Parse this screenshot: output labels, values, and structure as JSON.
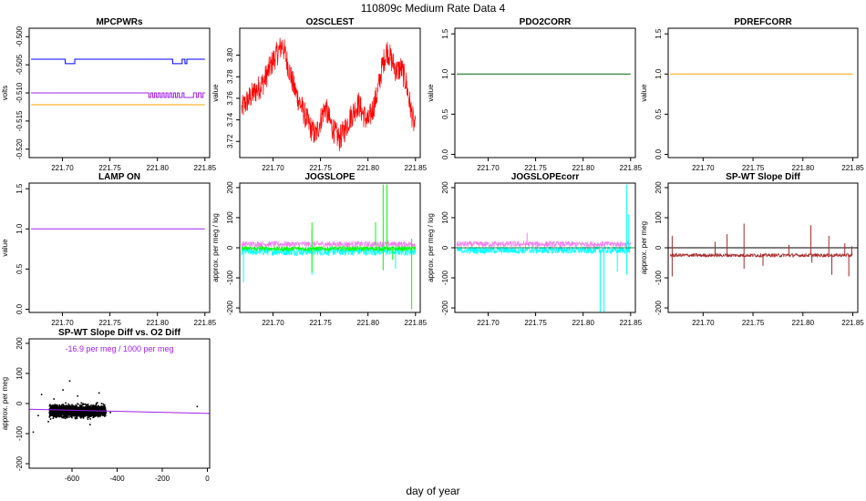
{
  "figure": {
    "title": "110809c   Medium Rate Data 4",
    "xlabel": "day of year"
  },
  "chart_data": [
    {
      "id": "mpcpwrs",
      "type": "line",
      "title": "MPCPWRs",
      "ylabel": "volts",
      "xlim": [
        221.665,
        221.855
      ],
      "ylim": [
        -0.5215,
        -0.4985
      ],
      "xticks": [
        {
          "v": 221.7,
          "label": "221.70"
        },
        {
          "v": 221.75,
          "label": "221.75"
        },
        {
          "v": 221.8,
          "label": "221.80"
        },
        {
          "v": 221.85,
          "label": "221.85"
        }
      ],
      "yticks": [
        {
          "v": -0.52,
          "label": "-0.520"
        },
        {
          "v": -0.515,
          "label": "-0.515"
        },
        {
          "v": -0.51,
          "label": "-0.510"
        },
        {
          "v": -0.505,
          "label": "-0.505"
        },
        {
          "v": -0.5,
          "label": "-0.500"
        }
      ],
      "series": [
        {
          "color": "#0000ff",
          "step": true,
          "x": [
            221.667,
            221.7,
            221.703,
            221.711,
            221.713,
            221.814,
            221.816,
            221.822,
            221.826,
            221.829,
            221.831,
            221.836,
            221.85
          ],
          "y": [
            -0.504,
            -0.504,
            -0.5048,
            -0.5048,
            -0.504,
            -0.504,
            -0.5048,
            -0.5048,
            -0.504,
            -0.5048,
            -0.504,
            -0.504,
            -0.504
          ]
        },
        {
          "color": "#a020f0",
          "step": true,
          "x": [
            221.667,
            221.79,
            221.791,
            221.793,
            221.795,
            221.797,
            221.799,
            221.801,
            221.803,
            221.805,
            221.807,
            221.809,
            221.811,
            221.813,
            221.815,
            221.817,
            221.819,
            221.821,
            221.823,
            221.826,
            221.828,
            221.836,
            221.838,
            221.841,
            221.843,
            221.846,
            221.848,
            221.85
          ],
          "y": [
            -0.51,
            -0.51,
            -0.5108,
            -0.51,
            -0.5108,
            -0.51,
            -0.5108,
            -0.51,
            -0.5108,
            -0.51,
            -0.5108,
            -0.51,
            -0.5108,
            -0.51,
            -0.5108,
            -0.51,
            -0.5108,
            -0.51,
            -0.5108,
            -0.51,
            -0.5108,
            -0.5108,
            -0.51,
            -0.5108,
            -0.51,
            -0.5108,
            -0.51,
            -0.51
          ]
        },
        {
          "color": "#ffa500",
          "x": [
            221.667,
            221.85
          ],
          "y": [
            -0.5121,
            -0.5121
          ]
        }
      ]
    },
    {
      "id": "o2sclest",
      "type": "line",
      "title": "O2SCLEST",
      "ylabel": "value",
      "xlim": [
        221.665,
        221.855
      ],
      "ylim": [
        3.705,
        3.825
      ],
      "xticks": [
        {
          "v": 221.7,
          "label": "221.70"
        },
        {
          "v": 221.75,
          "label": "221.75"
        },
        {
          "v": 221.8,
          "label": "221.80"
        },
        {
          "v": 221.85,
          "label": "221.85"
        }
      ],
      "yticks": [
        {
          "v": 3.72,
          "label": "3.72"
        },
        {
          "v": 3.74,
          "label": "3.74"
        },
        {
          "v": 3.76,
          "label": "3.76"
        },
        {
          "v": 3.78,
          "label": "3.78"
        },
        {
          "v": 3.8,
          "label": "3.80"
        }
      ],
      "series": [
        {
          "color": "#ff0000",
          "noise": 0.012,
          "x": [
            221.667,
            221.675,
            221.69,
            221.7,
            221.71,
            221.716,
            221.722,
            221.73,
            221.738,
            221.745,
            221.75,
            221.755,
            221.76,
            221.765,
            221.77,
            221.775,
            221.78,
            221.785,
            221.79,
            221.795,
            221.8,
            221.805,
            221.81,
            221.815,
            221.82,
            221.825,
            221.83,
            221.835,
            221.84,
            221.845,
            221.85
          ],
          "y": [
            3.75,
            3.76,
            3.775,
            3.795,
            3.81,
            3.79,
            3.77,
            3.752,
            3.735,
            3.725,
            3.74,
            3.752,
            3.738,
            3.728,
            3.722,
            3.73,
            3.74,
            3.748,
            3.755,
            3.745,
            3.738,
            3.75,
            3.765,
            3.79,
            3.805,
            3.795,
            3.785,
            3.788,
            3.775,
            3.75,
            3.73
          ]
        }
      ]
    },
    {
      "id": "pdo2corr",
      "type": "line",
      "title": "PDO2CORR",
      "ylabel": "value",
      "xlim": [
        221.665,
        221.855
      ],
      "ylim": [
        -0.04,
        1.57
      ],
      "xticks": [
        {
          "v": 221.7,
          "label": "221.70"
        },
        {
          "v": 221.75,
          "label": "221.75"
        },
        {
          "v": 221.8,
          "label": "221.80"
        },
        {
          "v": 221.85,
          "label": "221.85"
        }
      ],
      "yticks": [
        {
          "v": 0.0,
          "label": "0.0"
        },
        {
          "v": 0.5,
          "label": "0.5"
        },
        {
          "v": 1.0,
          "label": "1.0"
        },
        {
          "v": 1.5,
          "label": "1.5"
        }
      ],
      "series": [
        {
          "color": "#006400",
          "x": [
            221.667,
            221.85
          ],
          "y": [
            1.0,
            1.0
          ]
        }
      ]
    },
    {
      "id": "pdrefcorr",
      "type": "line",
      "title": "PDREFCORR",
      "ylabel": "value",
      "xlim": [
        221.665,
        221.855
      ],
      "ylim": [
        -0.04,
        1.57
      ],
      "xticks": [
        {
          "v": 221.7,
          "label": "221.70"
        },
        {
          "v": 221.75,
          "label": "221.75"
        },
        {
          "v": 221.8,
          "label": "221.80"
        },
        {
          "v": 221.85,
          "label": "221.85"
        }
      ],
      "yticks": [
        {
          "v": 0.0,
          "label": "0.0"
        },
        {
          "v": 0.5,
          "label": "0.5"
        },
        {
          "v": 1.0,
          "label": "1.0"
        },
        {
          "v": 1.5,
          "label": "1.5"
        }
      ],
      "series": [
        {
          "color": "#ffa500",
          "x": [
            221.667,
            221.85
          ],
          "y": [
            1.0,
            1.0
          ]
        }
      ]
    },
    {
      "id": "lampon",
      "type": "line",
      "title": "LAMP ON",
      "ylabel": "value",
      "xlim": [
        221.665,
        221.855
      ],
      "ylim": [
        -0.04,
        1.57
      ],
      "xticks": [
        {
          "v": 221.7,
          "label": "221.70"
        },
        {
          "v": 221.75,
          "label": "221.75"
        },
        {
          "v": 221.8,
          "label": "221.80"
        },
        {
          "v": 221.85,
          "label": "221.85"
        }
      ],
      "yticks": [
        {
          "v": 0.0,
          "label": "0.0"
        },
        {
          "v": 0.5,
          "label": "0.5"
        },
        {
          "v": 1.0,
          "label": "1.0"
        },
        {
          "v": 1.5,
          "label": "1.5"
        }
      ],
      "series": [
        {
          "color": "#a020f0",
          "x": [
            221.667,
            221.85
          ],
          "y": [
            1.0,
            1.0
          ]
        }
      ]
    },
    {
      "id": "jogslope",
      "type": "line",
      "title": "JOGSLOPE",
      "ylabel": "approx. per meg / log",
      "xlim": [
        221.665,
        221.855
      ],
      "ylim": [
        -215,
        215
      ],
      "xticks": [
        {
          "v": 221.7,
          "label": "221.70"
        },
        {
          "v": 221.75,
          "label": "221.75"
        },
        {
          "v": 221.8,
          "label": "221.80"
        },
        {
          "v": 221.85,
          "label": "221.85"
        }
      ],
      "yticks": [
        {
          "v": -200,
          "label": "-200"
        },
        {
          "v": -100,
          "label": "-100"
        },
        {
          "v": 0,
          "label": "0"
        },
        {
          "v": 100,
          "label": "100"
        },
        {
          "v": 200,
          "label": "200"
        }
      ],
      "series": [
        {
          "color": "#00ffff",
          "base": -12,
          "noise": 14,
          "x": [
            221.667,
            221.85
          ],
          "y": [
            -12,
            -12
          ],
          "spikes": [
            {
              "x": 221.669,
              "y": -115
            },
            {
              "x": 221.741,
              "y": -90
            },
            {
              "x": 221.829,
              "y": -70
            }
          ]
        },
        {
          "color": "#ee82ee",
          "base": 12,
          "noise": 10,
          "x": [
            221.667,
            221.85
          ],
          "y": [
            12,
            12
          ],
          "spikes": [
            {
              "x": 221.741,
              "y": 60
            }
          ]
        },
        {
          "color": "#00ff00",
          "base": -3,
          "noise": 8,
          "x": [
            221.667,
            221.85
          ],
          "y": [
            -3,
            -3
          ],
          "spikes": [
            {
              "x": 221.741,
              "y": 85
            },
            {
              "x": 221.741,
              "y": -80
            },
            {
              "x": 221.808,
              "y": 85
            },
            {
              "x": 221.816,
              "y": 210
            },
            {
              "x": 221.82,
              "y": 210
            },
            {
              "x": 221.816,
              "y": -75
            },
            {
              "x": 221.826,
              "y": -40
            },
            {
              "x": 221.846,
              "y": -205
            },
            {
              "x": 221.846,
              "y": 30
            }
          ]
        }
      ]
    },
    {
      "id": "jogslopecorr",
      "type": "line",
      "title": "JOGSLOPEcorr",
      "ylabel": "approx. per meg / log",
      "xlim": [
        221.665,
        221.855
      ],
      "ylim": [
        -215,
        215
      ],
      "xticks": [
        {
          "v": 221.7,
          "label": "221.70"
        },
        {
          "v": 221.75,
          "label": "221.75"
        },
        {
          "v": 221.8,
          "label": "221.80"
        },
        {
          "v": 221.85,
          "label": "221.85"
        }
      ],
      "yticks": [
        {
          "v": -200,
          "label": "-200"
        },
        {
          "v": -100,
          "label": "-100"
        },
        {
          "v": 0,
          "label": "0"
        },
        {
          "v": 100,
          "label": "100"
        },
        {
          "v": 200,
          "label": "200"
        }
      ],
      "series": [
        {
          "color": "#ee82ee",
          "base": 12,
          "noise": 10,
          "x": [
            221.667,
            221.85
          ],
          "y": [
            12,
            12
          ],
          "spikes": [
            {
              "x": 221.741,
              "y": 50
            }
          ]
        },
        {
          "color": "#00ffff",
          "base": -8,
          "noise": 12,
          "x": [
            221.667,
            221.85
          ],
          "y": [
            -8,
            -8
          ],
          "spikes": [
            {
              "x": 221.818,
              "y": -215
            },
            {
              "x": 221.822,
              "y": -215
            },
            {
              "x": 221.846,
              "y": 210
            },
            {
              "x": 221.848,
              "y": 110
            },
            {
              "x": 221.846,
              "y": -90
            },
            {
              "x": 221.836,
              "y": -80
            }
          ]
        }
      ],
      "zeroline": true
    },
    {
      "id": "spwtslope",
      "type": "line",
      "title": "SP-WT Slope Diff",
      "ylabel": "approx. per meg",
      "xlim": [
        221.665,
        221.855
      ],
      "ylim": [
        -215,
        215
      ],
      "xticks": [
        {
          "v": 221.7,
          "label": "221.70"
        },
        {
          "v": 221.75,
          "label": "221.75"
        },
        {
          "v": 221.8,
          "label": "221.80"
        },
        {
          "v": 221.85,
          "label": "221.85"
        }
      ],
      "yticks": [
        {
          "v": -200,
          "label": "-200"
        },
        {
          "v": -100,
          "label": "-100"
        },
        {
          "v": 0,
          "label": "0"
        },
        {
          "v": 100,
          "label": "100"
        },
        {
          "v": 200,
          "label": "200"
        }
      ],
      "series": [
        {
          "color": "#a52a2a",
          "base": -25,
          "noise": 6,
          "x": [
            221.667,
            221.85
          ],
          "y": [
            -25,
            -25
          ],
          "spikes": [
            {
              "x": 221.669,
              "y": 40
            },
            {
              "x": 221.669,
              "y": -95
            },
            {
              "x": 221.712,
              "y": 20
            },
            {
              "x": 221.724,
              "y": 45
            },
            {
              "x": 221.741,
              "y": 80
            },
            {
              "x": 221.741,
              "y": -70
            },
            {
              "x": 221.76,
              "y": -60
            },
            {
              "x": 221.786,
              "y": 10
            },
            {
              "x": 221.808,
              "y": 75
            },
            {
              "x": 221.809,
              "y": -50
            },
            {
              "x": 221.826,
              "y": 40
            },
            {
              "x": 221.829,
              "y": -90
            },
            {
              "x": 221.842,
              "y": 15
            },
            {
              "x": 221.846,
              "y": -95
            },
            {
              "x": 221.849,
              "y": 5
            }
          ]
        }
      ],
      "hline": {
        "y": 0,
        "color": "#000000"
      }
    },
    {
      "id": "spwtvso2",
      "type": "scatter",
      "title": "SP-WT Slope Diff vs. O2 Diff",
      "ylabel": "approx. per meg",
      "annotation": "-16.9 per meg / 1000 per meg",
      "annotation_color": "#a020f0",
      "xlim": [
        -790,
        10
      ],
      "ylim": [
        -215,
        215
      ],
      "xticks": [
        {
          "v": -600,
          "label": "-600"
        },
        {
          "v": -400,
          "label": "-400"
        },
        {
          "v": -200,
          "label": "-200"
        },
        {
          "v": 0,
          "label": "0"
        }
      ],
      "yticks": [
        {
          "v": -200,
          "label": "-200"
        },
        {
          "v": -100,
          "label": "-100"
        },
        {
          "v": 0,
          "label": "0"
        },
        {
          "v": 100,
          "label": "100"
        },
        {
          "v": 200,
          "label": "200"
        }
      ],
      "cluster": {
        "x_range": [
          -700,
          -450
        ],
        "y_center": -25,
        "y_spread": 15,
        "count": 1800,
        "color": "#000000"
      },
      "outliers": [
        {
          "x": -772,
          "y": -95
        },
        {
          "x": -750,
          "y": -40
        },
        {
          "x": -735,
          "y": 30
        },
        {
          "x": -705,
          "y": -60
        },
        {
          "x": -680,
          "y": 15
        },
        {
          "x": -640,
          "y": 45
        },
        {
          "x": -610,
          "y": 75
        },
        {
          "x": -575,
          "y": 25
        },
        {
          "x": -520,
          "y": -70
        },
        {
          "x": -480,
          "y": 35
        },
        {
          "x": -430,
          "y": -30
        },
        {
          "x": -45,
          "y": -10
        }
      ],
      "fit": {
        "x": [
          -790,
          10
        ],
        "y": [
          -19,
          -33
        ],
        "color": "#a020f0"
      }
    }
  ]
}
